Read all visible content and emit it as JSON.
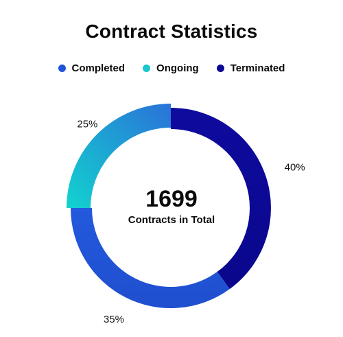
{
  "chart_data": {
    "type": "pie",
    "title": "Contract Statistics",
    "categories": [
      "Completed",
      "Ongoing",
      "Terminated"
    ],
    "values": [
      35,
      25,
      40
    ],
    "value_labels": [
      "35%",
      "25%",
      "40%"
    ],
    "colors": [
      "#1f56d6",
      "#19c7cf",
      "#0b0a96"
    ],
    "center_value": "1699",
    "center_label": "Contracts in Total",
    "legend_position": "top"
  }
}
